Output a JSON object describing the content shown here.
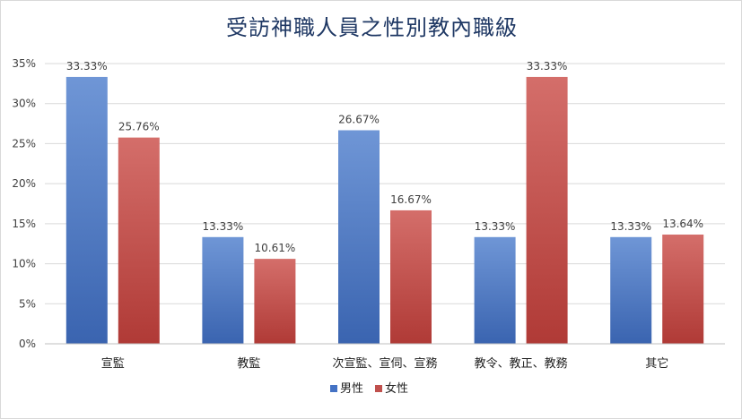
{
  "chart_data": {
    "type": "bar",
    "title": "受訪神職人員之性別教內職級",
    "categories": [
      "宣監",
      "教監",
      "次宣監、宣伺、宣務",
      "教令、教正、教務",
      "其它"
    ],
    "series": [
      {
        "name": "男性",
        "values": [
          33.33,
          13.33,
          26.67,
          13.33,
          13.33
        ],
        "color": "#4472c4",
        "labels": [
          "33.33%",
          "13.33%",
          "26.67%",
          "13.33%",
          "13.33%"
        ]
      },
      {
        "name": "女性",
        "values": [
          25.76,
          10.61,
          16.67,
          33.33,
          13.64
        ],
        "color": "#c0504d",
        "labels": [
          "25.76%",
          "10.61%",
          "16.67%",
          "33.33%",
          "13.64%"
        ]
      }
    ],
    "y_ticks": [
      "0%",
      "5%",
      "10%",
      "15%",
      "20%",
      "25%",
      "30%",
      "35%"
    ],
    "ylim": [
      0,
      35
    ],
    "grid": true,
    "legend_position": "bottom"
  }
}
